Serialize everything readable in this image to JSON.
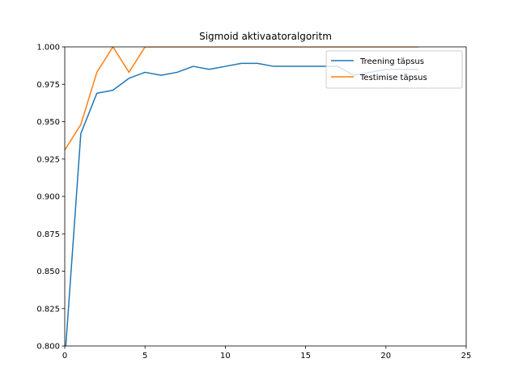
{
  "chart_data": {
    "type": "line",
    "title": "Sigmoid aktivaatoralgoritm",
    "xlabel": "",
    "ylabel": "",
    "xlim": [
      0,
      25
    ],
    "ylim": [
      0.8,
      1.0
    ],
    "xticks": [
      0,
      5,
      10,
      15,
      20,
      25
    ],
    "yticks": [
      0.8,
      0.825,
      0.85,
      0.875,
      0.9,
      0.925,
      0.95,
      0.975,
      1.0
    ],
    "xtick_labels": [
      "0",
      "5",
      "10",
      "15",
      "20",
      "25"
    ],
    "ytick_labels": [
      "0.800",
      "0.825",
      "0.850",
      "0.875",
      "0.900",
      "0.925",
      "0.950",
      "0.975",
      "1.000"
    ],
    "grid": false,
    "legend_position": "top-right",
    "series": [
      {
        "name": "Treening täpsus",
        "color": "#1f77b4",
        "x": [
          0,
          1,
          2,
          3,
          4,
          5,
          6,
          7,
          8,
          9,
          10,
          11,
          12,
          13,
          14,
          15,
          16,
          17,
          18,
          19,
          20,
          21,
          22
        ],
        "y": [
          0.79,
          0.942,
          0.969,
          0.971,
          0.979,
          0.983,
          0.981,
          0.983,
          0.987,
          0.985,
          0.987,
          0.989,
          0.989,
          0.987,
          0.987,
          0.987,
          0.987,
          0.987,
          0.981,
          0.983,
          0.985,
          0.985,
          0.985
        ]
      },
      {
        "name": "Testimise täpsus",
        "color": "#ff7f0e",
        "x": [
          0,
          1,
          2,
          3,
          4,
          5,
          6,
          7,
          8,
          9,
          10,
          11,
          12,
          13,
          14,
          15,
          16,
          17,
          18,
          19,
          20,
          21,
          22
        ],
        "y": [
          0.931,
          0.948,
          0.983,
          1.0,
          0.983,
          1.0,
          1.0,
          1.0,
          1.0,
          1.0,
          1.0,
          1.0,
          1.0,
          1.0,
          1.0,
          1.0,
          1.0,
          1.0,
          1.0,
          1.0,
          1.0,
          1.0,
          1.0
        ]
      }
    ]
  }
}
